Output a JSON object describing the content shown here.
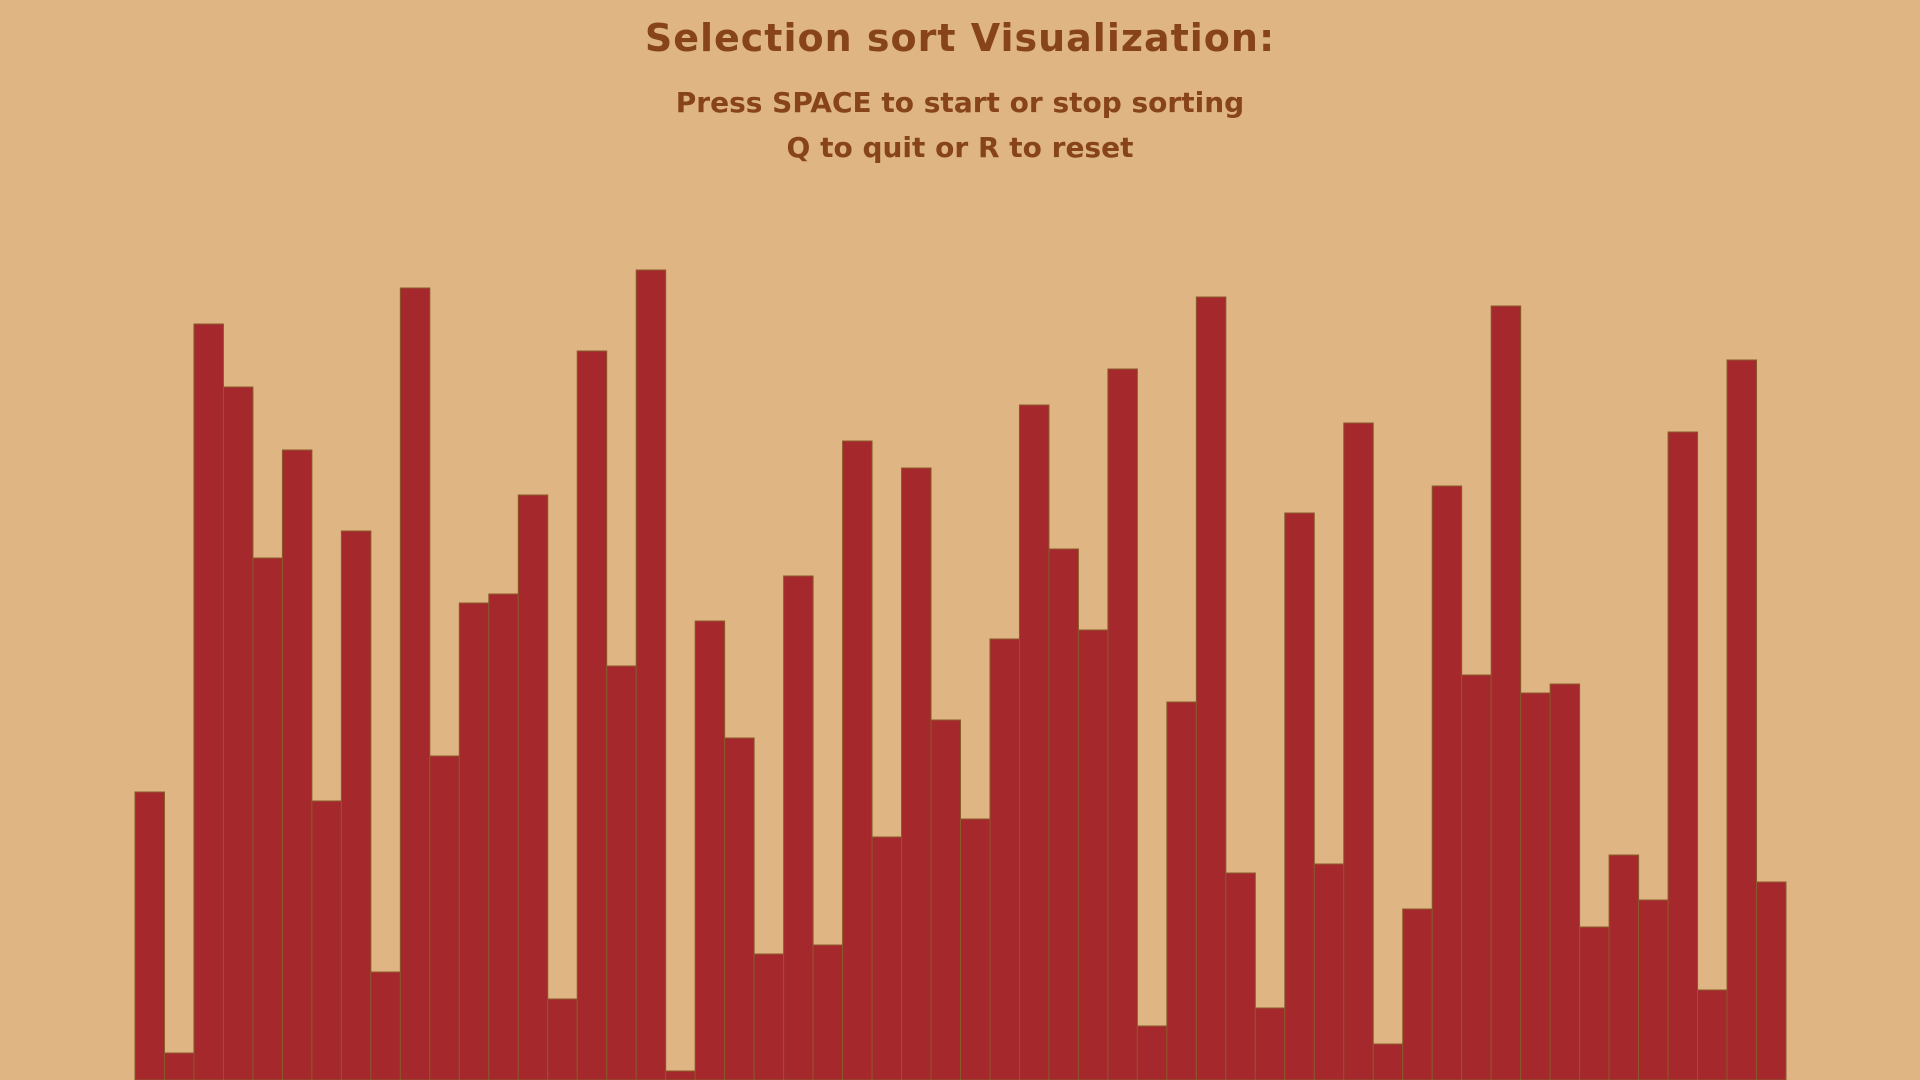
{
  "window": {
    "title": "Selection sort Visualization:",
    "instructions": [
      "Press SPACE to start or stop sorting",
      "Q to quit or R to reset"
    ]
  },
  "colors": {
    "background": "#dfb583",
    "bar_fill": "#a5282c",
    "bar_outline": "#8a5a2a",
    "text": "#87431a"
  },
  "chart_data": {
    "type": "bar",
    "xlabel": "",
    "ylabel": "",
    "ylim": [
      0,
      100
    ],
    "values": [
      32,
      3,
      84,
      77,
      58,
      70,
      31,
      61,
      12,
      88,
      36,
      53,
      54,
      65,
      9,
      81,
      46,
      90,
      1,
      51,
      38,
      14,
      56,
      15,
      71,
      27,
      68,
      40,
      29,
      49,
      75,
      59,
      50,
      79,
      6,
      42,
      87,
      23,
      8,
      63,
      24,
      73,
      4,
      19,
      66,
      45,
      86,
      43,
      44,
      17,
      25,
      20,
      72,
      10,
      80,
      22
    ]
  }
}
